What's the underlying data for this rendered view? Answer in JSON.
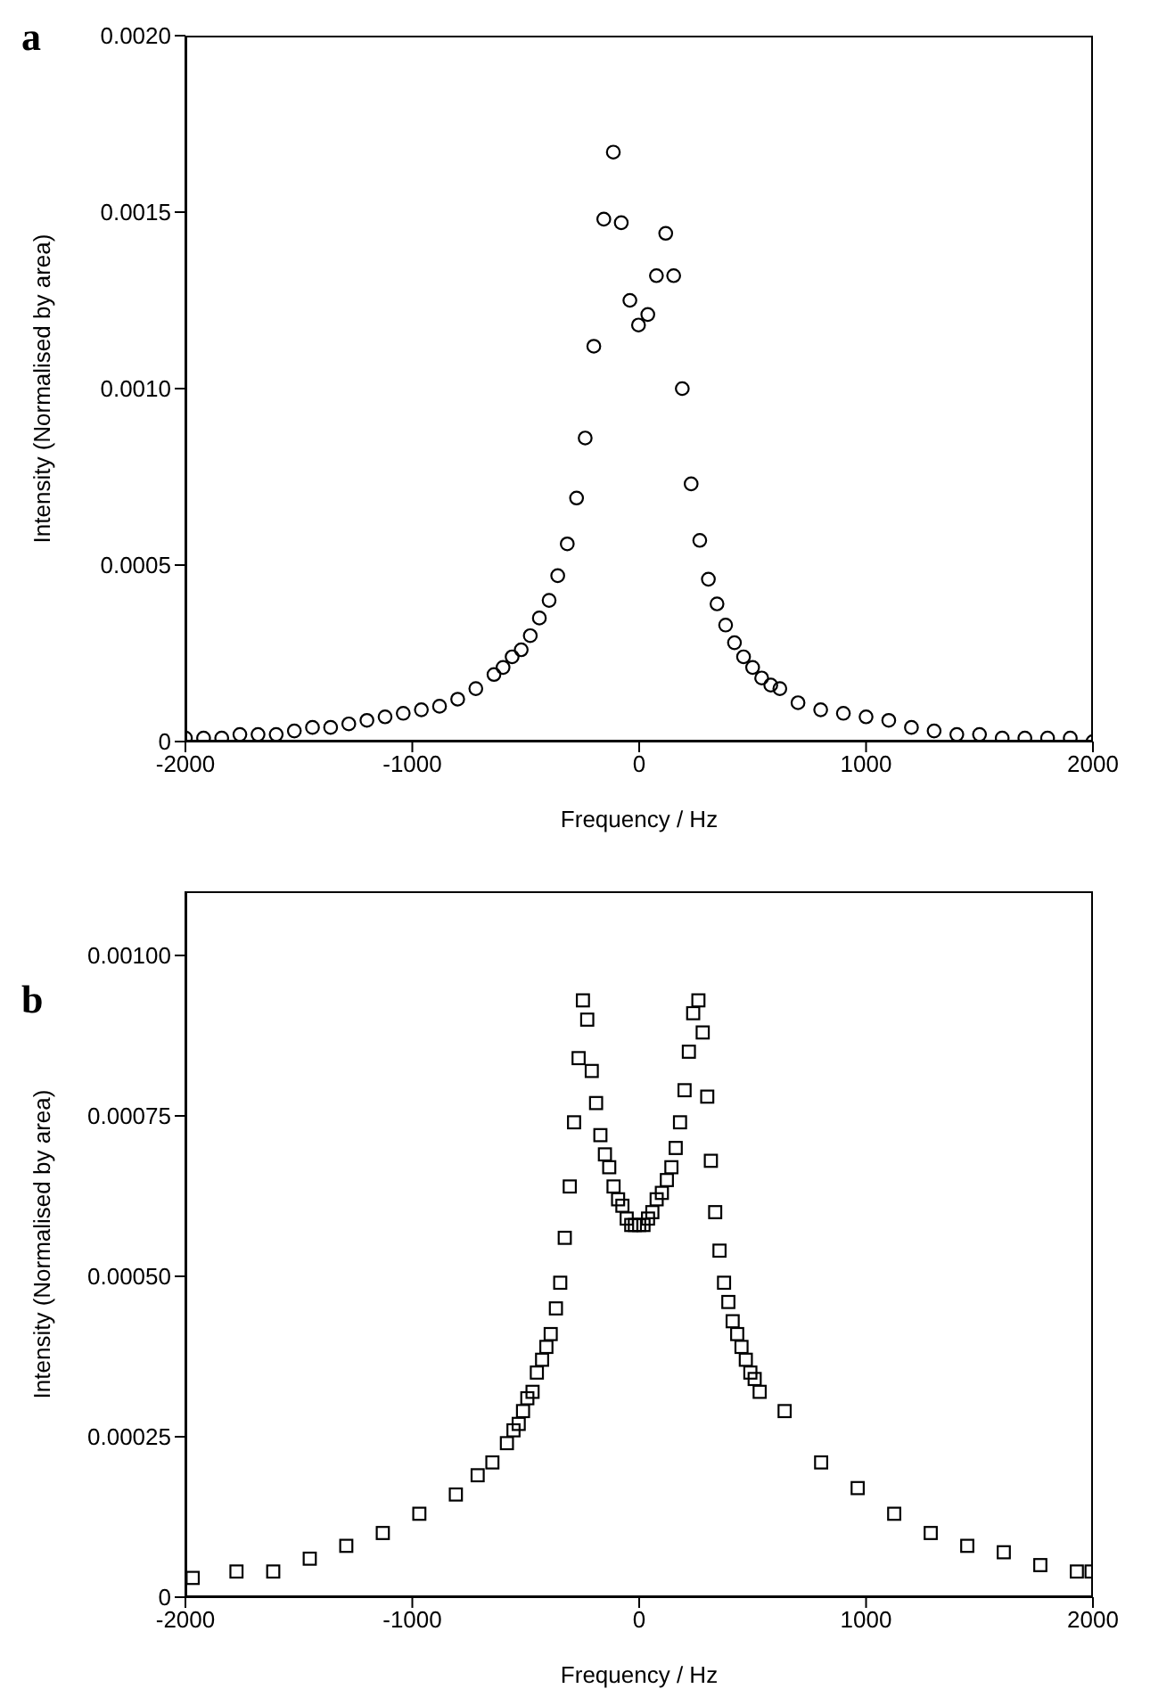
{
  "chart_data": [
    {
      "type": "scatter",
      "annotations": [
        "a"
      ],
      "xlabel": "Frequency / Hz",
      "ylabel": "Intensity (Normalised by area)",
      "marker": "circle",
      "grid": false,
      "legend": false,
      "xlim": [
        -2000,
        2000
      ],
      "xticks": [
        -2000,
        -1000,
        0,
        1000,
        2000
      ],
      "ylim": [
        0,
        0.002
      ],
      "yticks": [
        0,
        0.0005,
        {
          "value": 0.001,
          "label": "0.0010"
        },
        0.0015,
        {
          "value": 0.002,
          "label": "0.0020"
        }
      ],
      "series": [
        {
          "color": "#000000",
          "x": [
            -2000,
            -1920,
            -1840,
            -1760,
            -1680,
            -1600,
            -1520,
            -1440,
            -1360,
            -1280,
            -1200,
            -1120,
            -1040,
            -960,
            -880,
            -800,
            -720,
            -640,
            -600,
            -560,
            -520,
            -480,
            -440,
            -397,
            -359,
            -317,
            -276,
            -238,
            -200,
            -156,
            -114,
            -79,
            -41,
            -3,
            38,
            76,
            117,
            152,
            190,
            229,
            267,
            305,
            343,
            381,
            420,
            460,
            500,
            540,
            580,
            620,
            700,
            800,
            900,
            1000,
            1100,
            1200,
            1300,
            1400,
            1500,
            1600,
            1700,
            1800,
            1900,
            2000
          ],
          "values": [
            1e-05,
            1e-05,
            1e-05,
            2e-05,
            2e-05,
            2e-05,
            3e-05,
            4e-05,
            4e-05,
            5e-05,
            6e-05,
            7e-05,
            8e-05,
            9e-05,
            0.0001,
            0.00012,
            0.00015,
            0.00019,
            0.00021,
            0.00024,
            0.00026,
            0.0003,
            0.00035,
            0.0004,
            0.00047,
            0.00056,
            0.00069,
            0.00086,
            0.00112,
            0.00148,
            0.00167,
            0.00147,
            0.00125,
            0.00118,
            0.00121,
            0.00132,
            0.00144,
            0.00132,
            0.001,
            0.00073,
            0.00057,
            0.00046,
            0.00039,
            0.00033,
            0.00028,
            0.00024,
            0.00021,
            0.00018,
            0.00016,
            0.00015,
            0.00011,
            9e-05,
            8e-05,
            7e-05,
            6e-05,
            4e-05,
            3e-05,
            2e-05,
            2e-05,
            1e-05,
            1e-05,
            1e-05,
            1e-05,
            0
          ]
        }
      ]
    },
    {
      "type": "scatter",
      "annotations": [
        "b"
      ],
      "xlabel": "Frequency / Hz",
      "ylabel": "Intensity (Normalised by area)",
      "marker": "square",
      "grid": false,
      "legend": false,
      "xlim": [
        -2000,
        2000
      ],
      "xticks": [
        -2000,
        -1000,
        0,
        1000,
        2000
      ],
      "ylim": [
        0,
        0.0011
      ],
      "yticks": [
        0,
        0.00025,
        {
          "value": 0.0005,
          "label": "0.00050"
        },
        {
          "value": 0.00075,
          "label": "0.00075"
        },
        {
          "value": 0.001,
          "label": "0.00100"
        }
      ],
      "series": [
        {
          "color": "#000000",
          "x": [
            -1968,
            -1775,
            -1613,
            -1452,
            -1291,
            -1130,
            -969,
            -808,
            -712,
            -647,
            -583,
            -554,
            -531,
            -512,
            -493,
            -470,
            -451,
            -428,
            -409,
            -390,
            -367,
            -348,
            -328,
            -306,
            -287,
            -267,
            -248,
            -229,
            -209,
            -190,
            -171,
            -151,
            -132,
            -113,
            -93,
            -74,
            -55,
            -35,
            -19,
            0,
            19,
            39,
            58,
            77,
            100,
            122,
            142,
            161,
            180,
            200,
            219,
            238,
            261,
            280,
            300,
            316,
            335,
            354,
            374,
            393,
            412,
            432,
            451,
            470,
            490,
            509,
            531,
            641,
            802,
            963,
            1124,
            1285,
            1446,
            1607,
            1768,
            1929,
            1994
          ],
          "values": [
            3e-05,
            4e-05,
            4e-05,
            6e-05,
            8e-05,
            0.0001,
            0.00013,
            0.00016,
            0.00019,
            0.00021,
            0.00024,
            0.00026,
            0.00027,
            0.00029,
            0.00031,
            0.00032,
            0.00035,
            0.00037,
            0.00039,
            0.00041,
            0.00045,
            0.00049,
            0.00056,
            0.00064,
            0.00074,
            0.00084,
            0.00093,
            0.0009,
            0.00082,
            0.00077,
            0.00072,
            0.00069,
            0.00067,
            0.00064,
            0.00062,
            0.00061,
            0.00059,
            0.00058,
            0.00058,
            0.00058,
            0.00058,
            0.00059,
            0.0006,
            0.00062,
            0.00063,
            0.00065,
            0.00067,
            0.0007,
            0.00074,
            0.00079,
            0.00085,
            0.00091,
            0.00093,
            0.00088,
            0.00078,
            0.00068,
            0.0006,
            0.00054,
            0.00049,
            0.00046,
            0.00043,
            0.00041,
            0.00039,
            0.00037,
            0.00035,
            0.00034,
            0.00032,
            0.00029,
            0.00021,
            0.00017,
            0.00013,
            0.0001,
            8e-05,
            7e-05,
            5e-05,
            4e-05,
            4e-05
          ]
        }
      ]
    }
  ]
}
